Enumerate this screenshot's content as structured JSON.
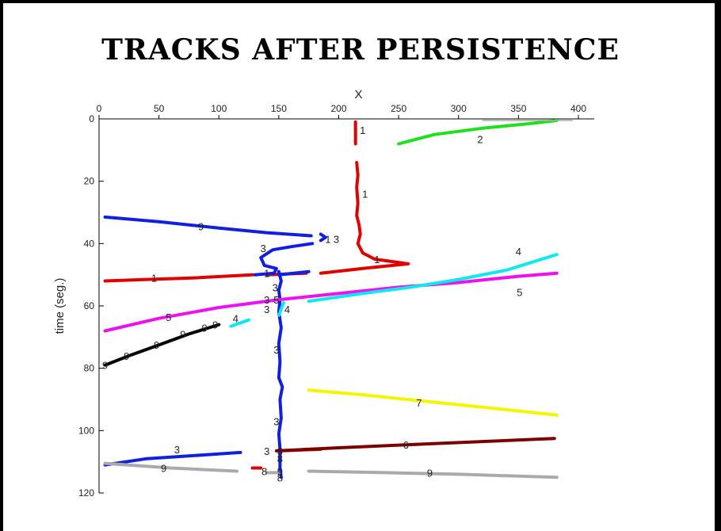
{
  "title": "TRACKS AFTER PERSISTENCE",
  "chart_data": {
    "type": "line",
    "title": "TRACKS AFTER PERSISTENCE",
    "xlabel": "X",
    "ylabel": "time (seg.)",
    "xlim": [
      0,
      400
    ],
    "ylim": [
      0,
      120
    ],
    "y_reversed": true,
    "x_ticks": [
      0,
      50,
      100,
      150,
      200,
      250,
      300,
      350,
      400
    ],
    "y_ticks": [
      0,
      20,
      40,
      60,
      80,
      100,
      120
    ],
    "grid": false,
    "colors": {
      "red": "#e00000",
      "green": "#1ee01e",
      "blue": "#1020e0",
      "magenta": "#ee10ee",
      "cyan": "#10e8f0",
      "black": "#000000",
      "yellow": "#f5f500",
      "maroon": "#7a0000",
      "gray": "#aaaaaa"
    },
    "series": [
      {
        "color": "red",
        "points": [
          [
            214,
            1
          ],
          [
            214,
            8
          ]
        ]
      },
      {
        "color": "red",
        "points": [
          [
            215,
            14
          ],
          [
            216,
            18
          ],
          [
            215,
            22
          ],
          [
            216,
            27
          ],
          [
            215,
            31
          ],
          [
            217,
            34
          ],
          [
            218,
            37
          ],
          [
            216,
            40
          ],
          [
            220,
            43
          ],
          [
            230,
            45
          ],
          [
            258,
            46.5
          ],
          [
            220,
            48
          ],
          [
            185,
            49.5
          ]
        ]
      },
      {
        "color": "red",
        "points": [
          [
            173,
            49.5
          ],
          [
            140,
            50
          ]
        ]
      },
      {
        "color": "red",
        "points": [
          [
            128,
            50
          ],
          [
            80,
            51
          ],
          [
            40,
            51.5
          ],
          [
            5,
            52
          ]
        ]
      },
      {
        "color": "red",
        "points": [
          [
            150,
            106.5
          ],
          [
            185,
            106
          ]
        ]
      },
      {
        "color": "red",
        "points": [
          [
            128,
            112
          ],
          [
            135,
            112
          ]
        ]
      },
      {
        "color": "green",
        "points": [
          [
            250,
            8
          ],
          [
            280,
            5
          ],
          [
            320,
            3
          ],
          [
            360,
            1.5
          ],
          [
            382,
            0.5
          ]
        ]
      },
      {
        "color": "blue",
        "points": [
          [
            5,
            31.5
          ],
          [
            50,
            33
          ],
          [
            100,
            35
          ],
          [
            140,
            36.5
          ],
          [
            177,
            37.5
          ]
        ]
      },
      {
        "color": "blue",
        "points": [
          [
            178,
            40
          ],
          [
            160,
            41
          ],
          [
            145,
            42
          ],
          [
            135,
            44.5
          ],
          [
            138,
            47
          ],
          [
            148,
            48
          ],
          [
            146,
            49.5
          ],
          [
            130,
            50
          ]
        ]
      },
      {
        "color": "blue",
        "points": [
          [
            150,
            49
          ],
          [
            152,
            52
          ],
          [
            150,
            55
          ],
          [
            151,
            58
          ],
          [
            150,
            62
          ],
          [
            152,
            67
          ],
          [
            150,
            72
          ],
          [
            151,
            78
          ],
          [
            150,
            83
          ],
          [
            153,
            86
          ],
          [
            151,
            90
          ],
          [
            152,
            96
          ],
          [
            150,
            101
          ],
          [
            151,
            106
          ],
          [
            151,
            112
          ],
          [
            152,
            115
          ]
        ]
      },
      {
        "color": "blue",
        "points": [
          [
            175,
            49
          ],
          [
            150,
            50
          ]
        ]
      },
      {
        "color": "blue",
        "points": [
          [
            185,
            37
          ],
          [
            189,
            38
          ],
          [
            185,
            39
          ]
        ]
      },
      {
        "color": "blue",
        "points": [
          [
            5,
            111
          ],
          [
            40,
            109
          ],
          [
            80,
            108
          ],
          [
            118,
            107
          ]
        ]
      },
      {
        "color": "magenta",
        "points": [
          [
            5,
            68
          ],
          [
            50,
            64
          ],
          [
            100,
            60.5
          ],
          [
            150,
            58
          ],
          [
            200,
            56
          ],
          [
            250,
            54
          ],
          [
            300,
            52.5
          ],
          [
            350,
            50.5
          ],
          [
            382,
            49.5
          ]
        ]
      },
      {
        "color": "cyan",
        "points": [
          [
            110,
            66.5
          ],
          [
            125,
            64.5
          ]
        ]
      },
      {
        "color": "cyan",
        "points": [
          [
            150,
            63
          ],
          [
            154,
            59
          ]
        ]
      },
      {
        "color": "cyan",
        "points": [
          [
            175,
            58.5
          ],
          [
            220,
            56
          ],
          [
            260,
            54
          ],
          [
            300,
            51.5
          ],
          [
            340,
            48.5
          ],
          [
            382,
            43.5
          ]
        ]
      },
      {
        "color": "black",
        "points": [
          [
            5,
            79
          ],
          [
            25,
            76
          ],
          [
            50,
            72.5
          ],
          [
            75,
            69
          ],
          [
            100,
            66
          ]
        ]
      },
      {
        "color": "yellow",
        "points": [
          [
            175,
            87
          ],
          [
            220,
            88.5
          ],
          [
            270,
            90.5
          ],
          [
            320,
            92.5
          ],
          [
            382,
            95
          ]
        ]
      },
      {
        "color": "maroon",
        "points": [
          [
            148,
            106.5
          ],
          [
            200,
            105.5
          ],
          [
            260,
            104.5
          ],
          [
            320,
            103.5
          ],
          [
            380,
            102.5
          ]
        ]
      },
      {
        "color": "gray",
        "points": [
          [
            5,
            110.5
          ],
          [
            60,
            112
          ],
          [
            115,
            113
          ]
        ]
      },
      {
        "color": "gray",
        "points": [
          [
            140,
            113.5
          ],
          [
            150,
            113.5
          ]
        ]
      },
      {
        "color": "gray",
        "points": [
          [
            175,
            113
          ],
          [
            240,
            113.5
          ],
          [
            300,
            114
          ],
          [
            382,
            115
          ]
        ]
      },
      {
        "color": "gray",
        "points": [
          [
            320,
            0.5
          ],
          [
            395,
            0.5
          ]
        ]
      }
    ],
    "annotations": [
      {
        "text": "1",
        "x": 220,
        "y": 3.5
      },
      {
        "text": "2",
        "x": 318,
        "y": 6.5
      },
      {
        "text": "1",
        "x": 222,
        "y": 24
      },
      {
        "text": "9",
        "x": 85,
        "y": 34.5
      },
      {
        "text": "1",
        "x": 191,
        "y": 38.5
      },
      {
        "text": "3",
        "x": 198,
        "y": 38.5
      },
      {
        "text": "3",
        "x": 137,
        "y": 41.5
      },
      {
        "text": "1",
        "x": 232,
        "y": 45
      },
      {
        "text": "4",
        "x": 350,
        "y": 42.5
      },
      {
        "text": "1",
        "x": 140,
        "y": 49.5
      },
      {
        "text": "1",
        "x": 46,
        "y": 51
      },
      {
        "text": "5",
        "x": 351,
        "y": 55.5
      },
      {
        "text": "3",
        "x": 147,
        "y": 54
      },
      {
        "text": "3",
        "x": 140,
        "y": 58
      },
      {
        "text": "5",
        "x": 148,
        "y": 58
      },
      {
        "text": "3",
        "x": 140,
        "y": 61
      },
      {
        "text": "4",
        "x": 157,
        "y": 61
      },
      {
        "text": "5",
        "x": 58,
        "y": 63.5
      },
      {
        "text": "4",
        "x": 114,
        "y": 64
      },
      {
        "text": "9",
        "x": 97,
        "y": 66
      },
      {
        "text": "9",
        "x": 88,
        "y": 67
      },
      {
        "text": "9",
        "x": 70,
        "y": 69
      },
      {
        "text": "9",
        "x": 48,
        "y": 72.5
      },
      {
        "text": "9",
        "x": 23,
        "y": 76
      },
      {
        "text": "9",
        "x": 5,
        "y": 79
      },
      {
        "text": "3",
        "x": 148,
        "y": 74
      },
      {
        "text": "7",
        "x": 267,
        "y": 91
      },
      {
        "text": "3",
        "x": 148,
        "y": 97
      },
      {
        "text": "6",
        "x": 256,
        "y": 104.5
      },
      {
        "text": "3",
        "x": 65,
        "y": 106
      },
      {
        "text": "3",
        "x": 140,
        "y": 106.5
      },
      {
        "text": "3",
        "x": 151,
        "y": 106.5
      },
      {
        "text": "8",
        "x": 151,
        "y": 109
      },
      {
        "text": "9",
        "x": 54,
        "y": 112
      },
      {
        "text": "8",
        "x": 138,
        "y": 113
      },
      {
        "text": "9",
        "x": 151,
        "y": 113
      },
      {
        "text": "8",
        "x": 151,
        "y": 115
      },
      {
        "text": "9",
        "x": 276,
        "y": 113.5
      }
    ]
  }
}
